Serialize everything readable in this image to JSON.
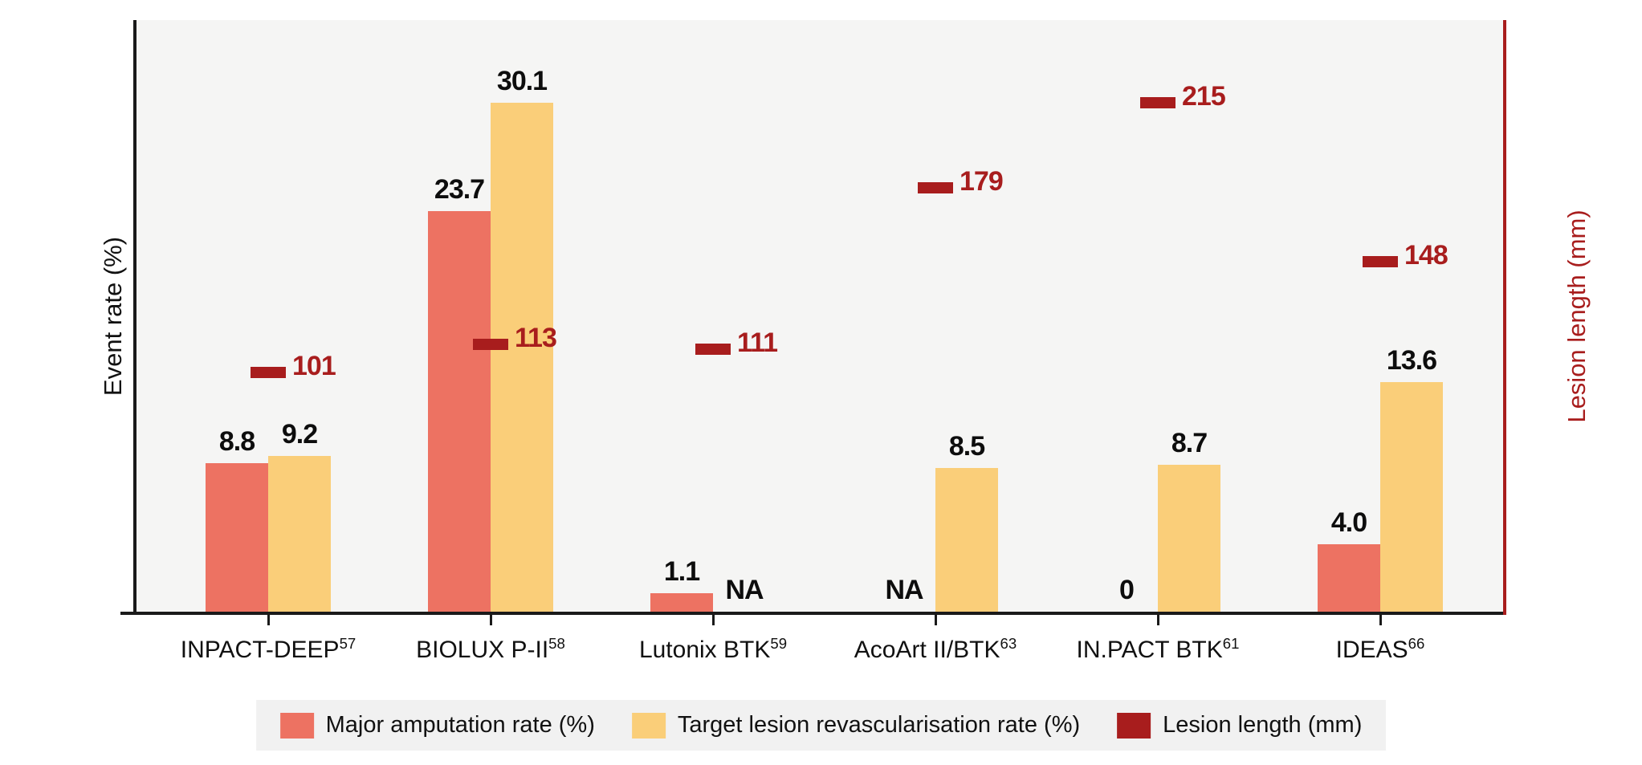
{
  "figure": {
    "ylabel_left": "Event rate (%)",
    "ylabel_right": "Lesion length (mm)"
  },
  "chart_data": {
    "type": "bar",
    "title": "",
    "xlabel": "",
    "ylabel": "Event rate (%)",
    "ylabel_right": "Lesion length (mm)",
    "ylim_left": [
      0,
      35
    ],
    "ylim_right": [
      0,
      250
    ],
    "grid": false,
    "legend_position": "bottom",
    "plot_background": "#f5f5f4",
    "categories": [
      {
        "label": "INPACT-DEEP",
        "ref": "57"
      },
      {
        "label": "BIOLUX P-II",
        "ref": "58"
      },
      {
        "label": "Lutonix BTK",
        "ref": "59"
      },
      {
        "label": "AcoArt II/BTK",
        "ref": "63"
      },
      {
        "label": "IN.PACT BTK",
        "ref": "61"
      },
      {
        "label": "IDEAS",
        "ref": "66"
      }
    ],
    "series": [
      {
        "name": "Major amputation rate (%)",
        "type": "bar",
        "axis": "left",
        "color": "#ed7262",
        "values": [
          8.8,
          23.7,
          1.1,
          null,
          0,
          4.0
        ],
        "labels": [
          "8.8",
          "23.7",
          "1.1",
          "NA",
          "0",
          "4.0"
        ]
      },
      {
        "name": "Target lesion revascularisation rate (%)",
        "type": "bar",
        "axis": "left",
        "color": "#face79",
        "values": [
          9.2,
          30.1,
          null,
          8.5,
          8.7,
          13.6
        ],
        "labels": [
          "9.2",
          "30.1",
          "NA",
          "8.5",
          "8.7",
          "13.6"
        ]
      },
      {
        "name": "Lesion length (mm)",
        "type": "marker",
        "axis": "right",
        "color": "#a81d1d",
        "values": [
          101,
          113,
          111,
          179,
          215,
          148
        ],
        "labels": [
          "101",
          "113",
          "111",
          "179",
          "215",
          "148"
        ]
      }
    ]
  }
}
